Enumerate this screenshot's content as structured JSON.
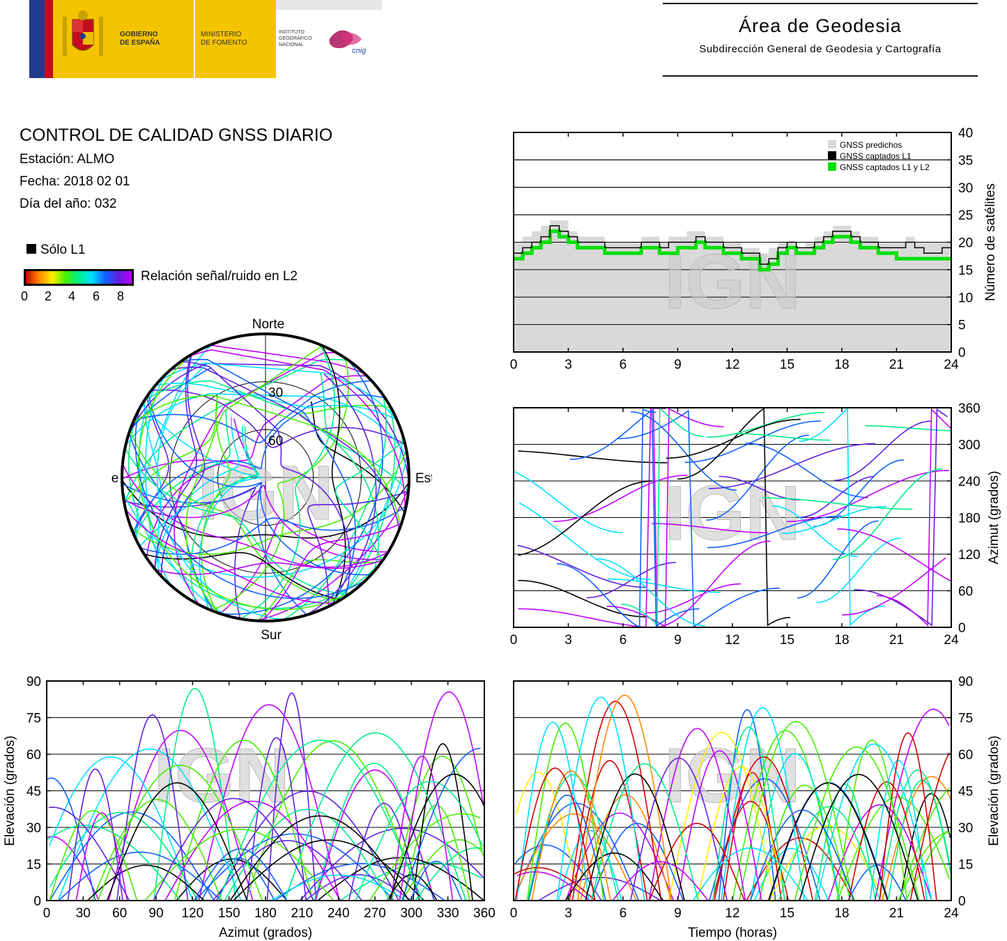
{
  "header": {
    "gov_text": [
      "GOBIERNO",
      "DE ESPAÑA"
    ],
    "ministry_text": [
      "MINISTERIO",
      "DE FOMENTO"
    ],
    "ign_text": [
      "INSTITUTO",
      "GEOGRÁFICO",
      "NACIONAL"
    ],
    "cnig_text": "cnig",
    "area_title": "Área de Geodesia",
    "area_subtitle": "Subdirección General de Geodesia y Cartografía"
  },
  "info": {
    "title": "CONTROL DE CALIDAD GNSS DIARIO",
    "station": "Estación: ALMO",
    "date": "Fecha: 2018 02 01",
    "doy": "Día del año: 032",
    "l1_only_label": "Sólo L1",
    "snr_label": "Relación señal/ruido en L2",
    "snr_ticks": [
      "0",
      "2",
      "4",
      "6",
      "8"
    ]
  },
  "watermark": "IGN",
  "colors": {
    "grid": "#000000",
    "predicted_fill": "#d9d9d9",
    "l1": "#000000",
    "l1l2": "#00e000",
    "snr_scale": [
      "#d00000",
      "#ff8800",
      "#ffee00",
      "#44ee00",
      "#00ee88",
      "#00e0ff",
      "#1060ff",
      "#6020e0",
      "#c000ff"
    ]
  },
  "chart_data": [
    {
      "type": "area",
      "id": "satellites",
      "xlabel": "",
      "ylabel": "Número de satélites",
      "xlim": [
        0,
        24
      ],
      "ylim": [
        0,
        40
      ],
      "xticks": [
        0,
        3,
        6,
        9,
        12,
        15,
        18,
        21,
        24
      ],
      "yticks": [
        0,
        5,
        10,
        15,
        20,
        25,
        30,
        35,
        40
      ],
      "legend": [
        "GNSS predichos",
        "GNSS captados L1",
        "GNSS captados L1 y L2"
      ],
      "legend_position": "top-right",
      "x": [
        0,
        0.5,
        1,
        1.5,
        2,
        2.5,
        3,
        3.5,
        4,
        4.5,
        5,
        5.5,
        6,
        6.5,
        7,
        7.5,
        8,
        8.5,
        9,
        9.5,
        10,
        10.5,
        11,
        11.5,
        12,
        12.5,
        13,
        13.5,
        14,
        14.5,
        15,
        15.5,
        16,
        16.5,
        17,
        17.5,
        18,
        18.5,
        19,
        19.5,
        20,
        20.5,
        21,
        21.5,
        22,
        22.5,
        23,
        23.5,
        24
      ],
      "series": [
        {
          "name": "GNSS predichos",
          "values": [
            20,
            21,
            22,
            23,
            24,
            24,
            22,
            21,
            21,
            21,
            20,
            20,
            20,
            20,
            21,
            21,
            20,
            21,
            21,
            22,
            22,
            21,
            21,
            20,
            20,
            19,
            19,
            18,
            19,
            20,
            20,
            19,
            20,
            21,
            22,
            23,
            23,
            22,
            21,
            21,
            20,
            20,
            20,
            21,
            20,
            20,
            20,
            20,
            20
          ]
        },
        {
          "name": "GNSS captados L1",
          "values": [
            18,
            19,
            20,
            21,
            23,
            22,
            21,
            20,
            20,
            20,
            19,
            19,
            19,
            19,
            20,
            20,
            19,
            20,
            20,
            20,
            21,
            20,
            20,
            19,
            19,
            18,
            18,
            16,
            17,
            19,
            20,
            19,
            19,
            20,
            21,
            22,
            22,
            21,
            20,
            20,
            19,
            19,
            19,
            20,
            19,
            18,
            18,
            19,
            19
          ]
        },
        {
          "name": "GNSS captados L1 y L2",
          "values": [
            17,
            18,
            19,
            20,
            22,
            21,
            20,
            19,
            19,
            19,
            18,
            18,
            18,
            18,
            19,
            19,
            18,
            18,
            19,
            19,
            20,
            19,
            19,
            18,
            18,
            17,
            17,
            15,
            16,
            18,
            19,
            18,
            18,
            19,
            20,
            21,
            21,
            20,
            19,
            19,
            18,
            18,
            17,
            17,
            17,
            17,
            17,
            17,
            17
          ]
        }
      ]
    },
    {
      "type": "scatter",
      "id": "skyplot",
      "direction_labels": {
        "north": "Norte",
        "south": "Sur",
        "east": "Este",
        "west": "Oeste"
      },
      "ring_labels": [
        "30",
        "60"
      ],
      "rings": [
        30,
        60
      ]
    },
    {
      "type": "scatter",
      "id": "azimuth-time",
      "ylabel": "Azimut (grados)",
      "xlim": [
        0,
        24
      ],
      "ylim": [
        0,
        360
      ],
      "xticks": [
        0,
        3,
        6,
        9,
        12,
        15,
        18,
        21,
        24
      ],
      "yticks": [
        0,
        60,
        120,
        180,
        240,
        300,
        360
      ]
    },
    {
      "type": "scatter",
      "id": "elevation-azimuth",
      "xlabel": "Azimut (grados)",
      "ylabel": "Elevación (grados)",
      "xlim": [
        0,
        360
      ],
      "ylim": [
        0,
        90
      ],
      "xticks": [
        0,
        30,
        60,
        90,
        120,
        150,
        180,
        210,
        240,
        270,
        300,
        330,
        360
      ],
      "yticks": [
        0,
        15,
        30,
        45,
        60,
        75,
        90
      ]
    },
    {
      "type": "scatter",
      "id": "elevation-time",
      "xlabel": "Tiempo (horas)",
      "ylabel": "Elevación (grados)",
      "xlim": [
        0,
        24
      ],
      "ylim": [
        0,
        90
      ],
      "xticks": [
        0,
        3,
        6,
        9,
        12,
        15,
        18,
        21,
        24
      ],
      "yticks": [
        0,
        15,
        30,
        45,
        60,
        75,
        90
      ]
    }
  ]
}
